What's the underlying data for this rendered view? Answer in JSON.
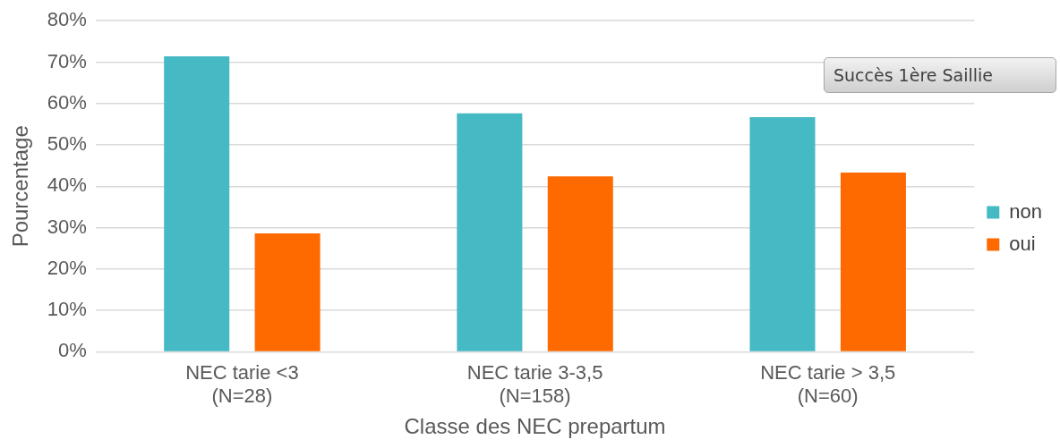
{
  "chart_data": {
    "type": "bar",
    "xlabel": "Classe des NEC prepartum",
    "ylabel": "Pourcentage",
    "legend_title": "Succès 1ère Saillie",
    "categories": [
      "NEC tarie <3\n(N=28)",
      "NEC tarie 3-3,5\n(N=158)",
      "NEC tarie > 3,5\n(N=60)"
    ],
    "series": [
      {
        "name": "non",
        "color": "#45b9c4",
        "values": [
          71.4,
          57.6,
          56.7
        ]
      },
      {
        "name": "oui",
        "color": "#ff6a00",
        "values": [
          28.6,
          42.4,
          43.3
        ]
      }
    ],
    "ylim": [
      0,
      80
    ],
    "yticks": [
      {
        "value": 0,
        "label": "0%"
      },
      {
        "value": 10,
        "label": "10%"
      },
      {
        "value": 20,
        "label": "20%"
      },
      {
        "value": 30,
        "label": "30%"
      },
      {
        "value": 40,
        "label": "40%"
      },
      {
        "value": 50,
        "label": "50%"
      },
      {
        "value": 60,
        "label": "60%"
      },
      {
        "value": 70,
        "label": "70%"
      },
      {
        "value": 80,
        "label": "80%"
      }
    ],
    "grid": "y",
    "legend": "right"
  }
}
